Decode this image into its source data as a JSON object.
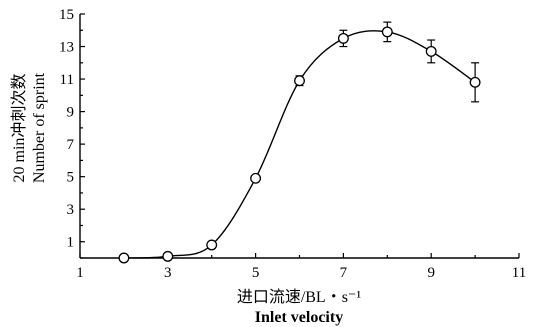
{
  "chart_data": {
    "type": "scatter",
    "xlabel": "进口流速/BL・s⁻¹",
    "xlabel_en": "Inlet velocity",
    "ylabel": "20 min冲刺次数",
    "ylabel_en": "Number of sprint",
    "xlim": [
      1,
      11
    ],
    "ylim": [
      0,
      15
    ],
    "x_ticks": [
      1,
      3,
      5,
      7,
      9,
      11
    ],
    "y_ticks": [
      1,
      3,
      5,
      7,
      9,
      11,
      13,
      15
    ],
    "grid": false,
    "smooth_curve": true,
    "series": [
      {
        "x": [
          2,
          3,
          4,
          5,
          6,
          7,
          8,
          9,
          10
        ],
        "y": [
          0,
          0.1,
          0.8,
          4.9,
          10.9,
          13.5,
          13.9,
          12.7,
          10.8
        ],
        "err": [
          0,
          0,
          0,
          0,
          0.3,
          0.5,
          0.6,
          0.7,
          1.2
        ]
      }
    ]
  }
}
